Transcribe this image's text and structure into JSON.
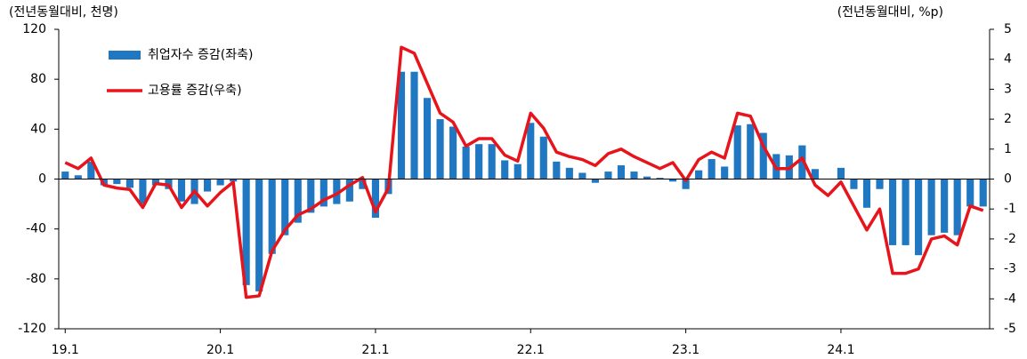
{
  "chart_data": {
    "type": "bar-line",
    "y_label": "(전년동월대비, 천명)",
    "y2_label": "(전년동월대비, %p)",
    "categories": [
      "19.1",
      null,
      null,
      null,
      null,
      null,
      null,
      null,
      null,
      null,
      null,
      null,
      "20.1",
      null,
      null,
      null,
      null,
      null,
      null,
      null,
      null,
      null,
      null,
      null,
      "21.1",
      null,
      null,
      null,
      null,
      null,
      null,
      null,
      null,
      null,
      null,
      null,
      "22.1",
      null,
      null,
      null,
      null,
      null,
      null,
      null,
      null,
      null,
      null,
      null,
      "23.1",
      null,
      null,
      null,
      null,
      null,
      null,
      null,
      null,
      null,
      null,
      null,
      "24.1",
      null,
      null,
      null,
      null,
      null,
      null,
      null,
      null,
      null,
      null,
      null
    ],
    "series": [
      {
        "name": "취업자수 증감(좌축)",
        "color": "#1f78c1",
        "type": "bar",
        "values": [
          6,
          3,
          14,
          -5,
          -4,
          -7,
          -20,
          -5,
          -8,
          -18,
          -20,
          -10,
          -5,
          -2,
          -85,
          -90,
          -60,
          -45,
          -35,
          -27,
          -22,
          -20,
          -18,
          -8,
          -31,
          -12,
          86,
          86,
          65,
          48,
          42,
          26,
          28,
          28,
          15,
          12,
          45,
          34,
          14,
          9,
          5,
          -3,
          6,
          11,
          6,
          2,
          1,
          -2,
          -8,
          7,
          16,
          10,
          43,
          44,
          37,
          20,
          19,
          27,
          8,
          0,
          9,
          -8,
          -23,
          -8,
          -53,
          -53,
          -61,
          -45,
          -43,
          -45,
          -22,
          -22
        ]
      },
      {
        "name": "고용률 증감(우축)",
        "color": "#e8141b",
        "type": "line",
        "axis": "y2",
        "values": [
          0.55,
          0.35,
          0.7,
          -0.2,
          -0.3,
          -0.35,
          -0.95,
          -0.15,
          -0.2,
          -0.95,
          -0.4,
          -0.9,
          -0.45,
          -0.1,
          -3.95,
          -3.9,
          -2.4,
          -1.7,
          -1.2,
          -1.0,
          -0.7,
          -0.5,
          -0.2,
          0.05,
          -1.1,
          -0.3,
          4.4,
          4.2,
          3.2,
          2.2,
          1.9,
          1.1,
          1.35,
          1.35,
          0.8,
          0.6,
          2.2,
          1.7,
          0.9,
          0.75,
          0.65,
          0.45,
          0.85,
          1.0,
          0.75,
          0.55,
          0.35,
          0.55,
          -0.05,
          0.65,
          0.9,
          0.7,
          2.2,
          2.1,
          1.1,
          0.35,
          0.35,
          0.7,
          -0.2,
          -0.55,
          -0.1,
          -0.9,
          -1.7,
          -1.0,
          -3.15,
          -3.15,
          -3.0,
          -2.0,
          -1.9,
          -2.2,
          -0.9,
          -1.05
        ]
      }
    ],
    "ylim": [
      -120,
      120
    ],
    "yticks": [
      120,
      80,
      40,
      0,
      -40,
      -80,
      -120
    ],
    "y2lim": [
      -5,
      5
    ],
    "y2ticks": [
      5,
      4,
      3,
      2,
      1,
      0,
      -1,
      -2,
      -3,
      -4,
      -5
    ],
    "legend": "upper left"
  }
}
